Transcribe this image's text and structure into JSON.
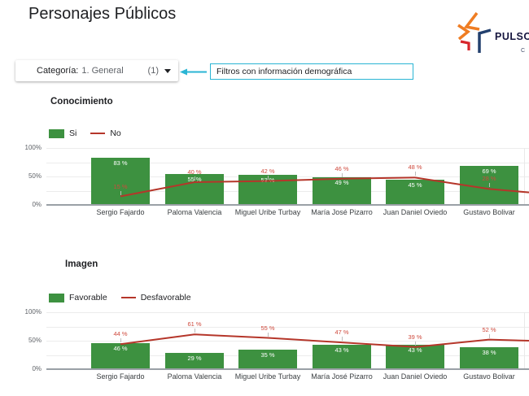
{
  "page_title": "Personajes Públicos",
  "logo": {
    "brand": "PULSO",
    "subtitle_initial": "C",
    "colors": {
      "orange": "#ef7d23",
      "red": "#d7262c",
      "navy": "#23406e"
    }
  },
  "filter_bar": {
    "label": "Categoría:",
    "value": "1. General",
    "count": "(1)",
    "caret_icon": "caret-down"
  },
  "annotation": {
    "text": "Filtros con información demográfica",
    "accent_color": "#2ab5d4",
    "arrow_icon": "arrow-left"
  },
  "chart_data": [
    {
      "type": "bar",
      "subtype": "bar-line-combo",
      "title": "Conocimiento",
      "categories": [
        "Sergio Fajardo",
        "Paloma Valencia",
        "Miguel Uribe Turbay",
        "María José Pizarro",
        "Juan Daniel Oviedo",
        "Gustavo Bolivar"
      ],
      "series": [
        {
          "name": "Si",
          "type": "bar",
          "color": "#3d9140",
          "label_color": "#ffffff",
          "values": [
            83,
            55,
            53,
            49,
            45,
            69
          ]
        },
        {
          "name": "No",
          "type": "line",
          "color": "#b5362a",
          "label_color": "#cf4a3d",
          "values": [
            15,
            40,
            42,
            46,
            48,
            28
          ]
        }
      ],
      "value_suffix": " %",
      "ylim": [
        0,
        100
      ],
      "yticks": [
        {
          "value": 0,
          "label": "0%"
        },
        {
          "value": 50,
          "label": "50%"
        },
        {
          "value": 100,
          "label": "100%"
        }
      ],
      "gridlines": [
        0,
        25,
        50,
        75,
        100
      ],
      "legend_position": "top-left",
      "line_extension_value": 22
    },
    {
      "type": "bar",
      "subtype": "bar-line-combo",
      "title": "Imagen",
      "categories": [
        "Sergio Fajardo",
        "Paloma Valencia",
        "Miguel Uribe Turbay",
        "María José Pizarro",
        "Juan Daniel Oviedo",
        "Gustavo Bolivar"
      ],
      "series": [
        {
          "name": "Favorable",
          "type": "bar",
          "color": "#3d9140",
          "label_color": "#ffffff",
          "values": [
            46,
            29,
            35,
            43,
            43,
            38
          ]
        },
        {
          "name": "Desfavorable",
          "type": "line",
          "color": "#b5362a",
          "label_color": "#cf4a3d",
          "values": [
            44,
            61,
            55,
            47,
            39,
            52
          ]
        }
      ],
      "value_suffix": " %",
      "ylim": [
        0,
        100
      ],
      "yticks": [
        {
          "value": 0,
          "label": "0%"
        },
        {
          "value": 50,
          "label": "50%"
        },
        {
          "value": 100,
          "label": "100%"
        }
      ],
      "gridlines": [
        0,
        25,
        50,
        75,
        100
      ],
      "legend_position": "top-left",
      "line_extension_value": 50
    }
  ]
}
